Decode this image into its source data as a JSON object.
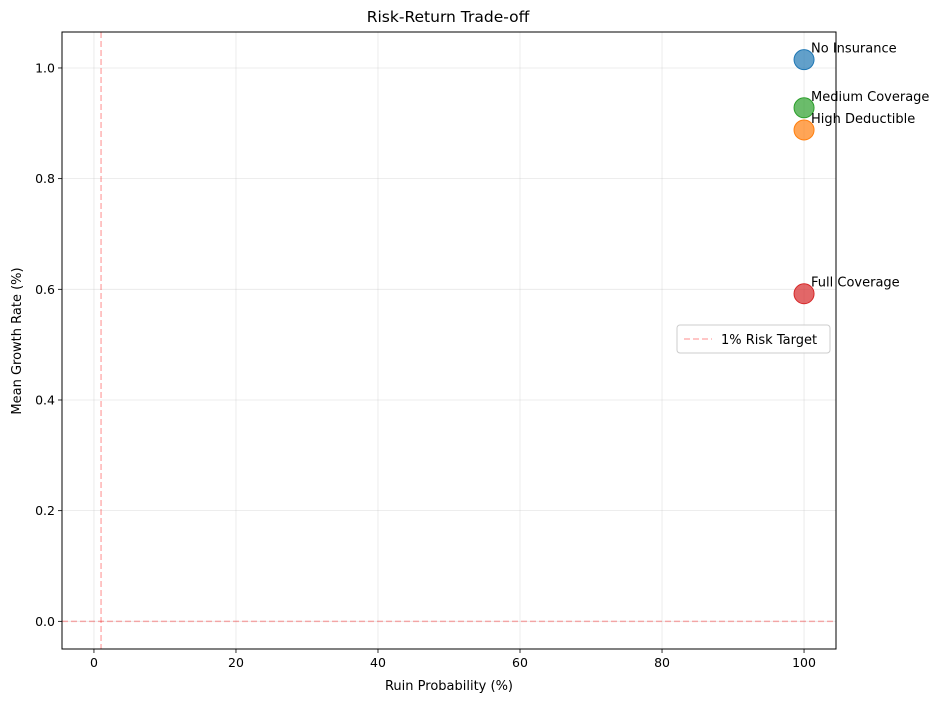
{
  "chart_data": {
    "type": "scatter",
    "title": "Risk-Return Trade-off",
    "xlabel": "Ruin Probability (%)",
    "ylabel": "Mean Growth Rate (%)",
    "xlim": [
      -4.5,
      104.5
    ],
    "ylim": [
      -0.05,
      1.065
    ],
    "xticks": [
      0,
      20,
      40,
      60,
      80,
      100
    ],
    "yticks": [
      0.0,
      0.2,
      0.4,
      0.6,
      0.8,
      1.0
    ],
    "xtick_labels": [
      "0",
      "20",
      "40",
      "60",
      "80",
      "100"
    ],
    "ytick_labels": [
      "0.0",
      "0.2",
      "0.4",
      "0.6",
      "0.8",
      "1.0"
    ],
    "grid": true,
    "points": [
      {
        "label": "No Insurance",
        "x": 100,
        "y": 1.015,
        "color": "#1f77b4"
      },
      {
        "label": "High Deductible",
        "x": 100,
        "y": 0.888,
        "color": "#ff7f0e"
      },
      {
        "label": "Medium Coverage",
        "x": 100,
        "y": 0.928,
        "color": "#2ca02c"
      },
      {
        "label": "Full Coverage",
        "x": 100,
        "y": 0.592,
        "color": "#d62728"
      }
    ],
    "reference_lines": [
      {
        "orientation": "vertical",
        "value": 1,
        "color": "#ff0000",
        "style": "dashed"
      },
      {
        "orientation": "horizontal",
        "value": 0,
        "color": "#ff0000",
        "style": "dashed"
      }
    ],
    "legend": {
      "placement": "center-right",
      "entries": [
        {
          "label": "1% Risk Target",
          "color": "#ff0000",
          "style": "dashed"
        }
      ]
    }
  }
}
